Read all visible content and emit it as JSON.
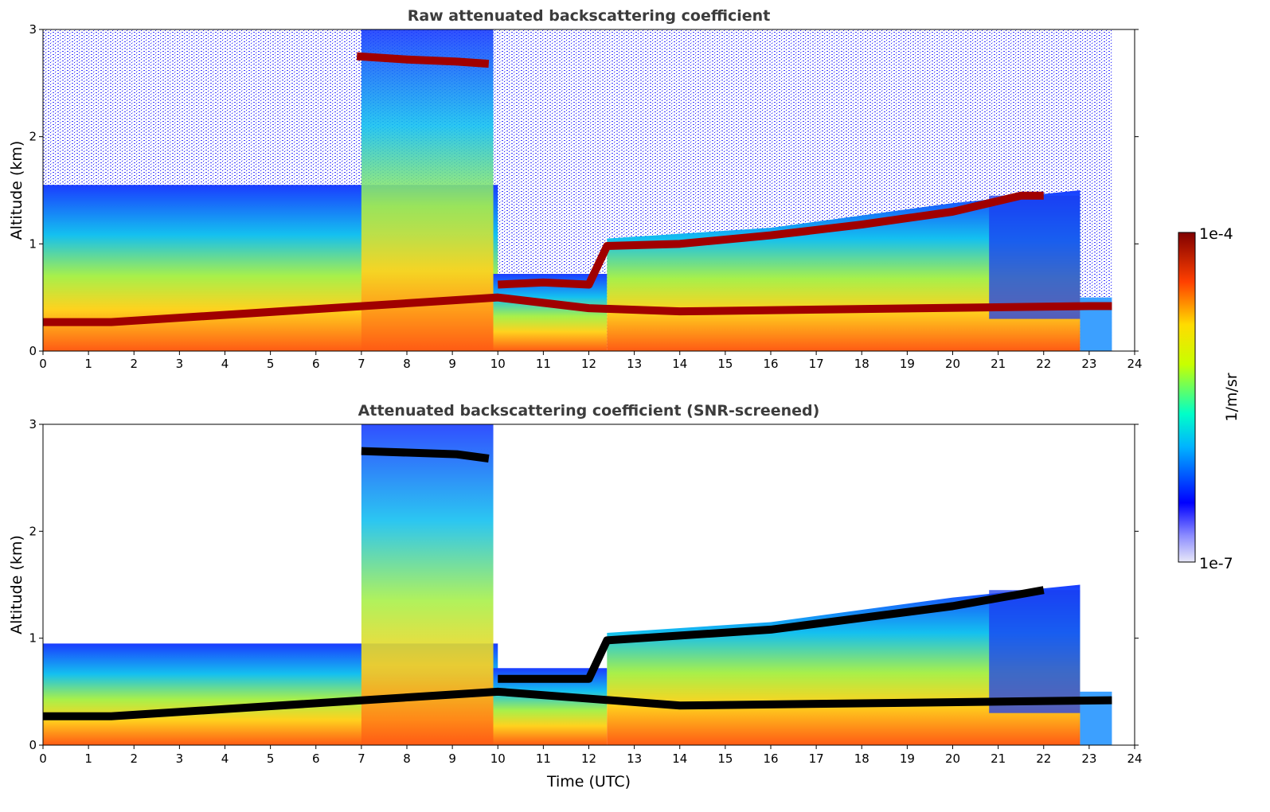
{
  "figure": {
    "time_label": "Time (UTC)"
  },
  "chart_data": [
    {
      "type": "heatmap",
      "title": "Raw attenuated backscattering coefficient",
      "xlabel": "",
      "ylabel": "Altitude (km)",
      "xlim": [
        0,
        24
      ],
      "ylim": [
        0,
        3
      ],
      "xticks": [
        "0",
        "1",
        "2",
        "3",
        "4",
        "5",
        "6",
        "7",
        "8",
        "9",
        "10",
        "11",
        "12",
        "13",
        "14",
        "15",
        "16",
        "17",
        "18",
        "19",
        "20",
        "21",
        "22",
        "23",
        "24"
      ],
      "yticks": [
        "0",
        "1",
        "2",
        "3"
      ],
      "layers": [
        {
          "name": "cloud layer top",
          "points": [
            [
              6.9,
              2.75
            ],
            [
              8.0,
              2.72
            ],
            [
              9.1,
              2.7
            ],
            [
              9.8,
              2.68
            ]
          ]
        },
        {
          "name": "low cloud layer",
          "points": [
            [
              10.0,
              0.62
            ],
            [
              11.0,
              0.64
            ],
            [
              12.0,
              0.62
            ],
            [
              12.4,
              0.98
            ],
            [
              14.0,
              1.0
            ],
            [
              16.0,
              1.08
            ],
            [
              18.0,
              1.18
            ],
            [
              20.0,
              1.3
            ],
            [
              21.5,
              1.45
            ],
            [
              22.0,
              1.45
            ]
          ]
        },
        {
          "name": "lower layer",
          "points": [
            [
              0.0,
              0.27
            ],
            [
              1.5,
              0.27
            ],
            [
              10.0,
              0.5
            ],
            [
              12.0,
              0.4
            ],
            [
              14.0,
              0.37
            ],
            [
              23.0,
              0.42
            ],
            [
              23.5,
              0.42
            ]
          ]
        }
      ]
    },
    {
      "type": "heatmap",
      "title": "Attenuated backscattering coefficient (SNR-screened)",
      "xlabel": "Time (UTC)",
      "ylabel": "Altitude (km)",
      "xlim": [
        0,
        24
      ],
      "ylim": [
        0,
        3
      ],
      "xticks": [
        "0",
        "1",
        "2",
        "3",
        "4",
        "5",
        "6",
        "7",
        "8",
        "9",
        "10",
        "11",
        "12",
        "13",
        "14",
        "15",
        "16",
        "17",
        "18",
        "19",
        "20",
        "21",
        "22",
        "23",
        "24"
      ],
      "yticks": [
        "0",
        "1",
        "2",
        "3"
      ],
      "layers": [
        {
          "name": "cloud layer top",
          "points": [
            [
              7.0,
              2.75
            ],
            [
              9.1,
              2.72
            ],
            [
              9.8,
              2.68
            ]
          ]
        },
        {
          "name": "low cloud layer",
          "points": [
            [
              10.0,
              0.62
            ],
            [
              12.0,
              0.62
            ],
            [
              12.4,
              0.98
            ],
            [
              16.0,
              1.08
            ],
            [
              20.0,
              1.3
            ],
            [
              22.0,
              1.45
            ]
          ]
        },
        {
          "name": "lower layer",
          "points": [
            [
              0.0,
              0.27
            ],
            [
              1.5,
              0.27
            ],
            [
              10.0,
              0.5
            ],
            [
              14.0,
              0.37
            ],
            [
              23.5,
              0.42
            ]
          ]
        }
      ]
    }
  ],
  "colorbar": {
    "label": "1/m/sr",
    "max_label": "1e-4",
    "min_label": "1e-7",
    "colormap": [
      "#e8e8f8",
      "#0000ff",
      "#00ffff",
      "#ffff00",
      "#ff0000",
      "#800000"
    ]
  }
}
